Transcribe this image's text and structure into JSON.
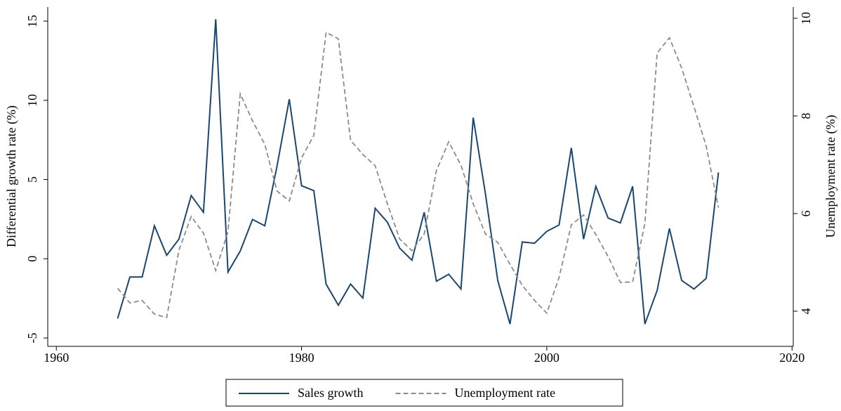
{
  "chart_data": {
    "type": "line",
    "y_label": "Differential growth rate (%)",
    "y2_label": "Unemployment rate (%)",
    "x": [
      1965,
      1966,
      1967,
      1968,
      1969,
      1970,
      1971,
      1972,
      1973,
      1974,
      1975,
      1976,
      1977,
      1978,
      1979,
      1980,
      1981,
      1982,
      1983,
      1984,
      1985,
      1986,
      1987,
      1988,
      1989,
      1990,
      1991,
      1992,
      1993,
      1994,
      1995,
      1996,
      1997,
      1998,
      1999,
      2000,
      2001,
      2002,
      2003,
      2004,
      2005,
      2006,
      2007,
      2008,
      2009,
      2010,
      2011,
      2012,
      2013,
      2014
    ],
    "series": [
      {
        "name": "Sales growth",
        "color": "#1a476f",
        "dash": false,
        "values": [
          -3.77,
          -1.15,
          -1.15,
          2.08,
          0.22,
          1.24,
          3.99,
          2.93,
          15.12,
          -0.84,
          0.49,
          2.48,
          2.08,
          5.85,
          10.07,
          4.61,
          4.3,
          -1.6,
          -2.93,
          -1.6,
          -2.48,
          3.19,
          2.31,
          0.67,
          -0.09,
          2.93,
          -1.42,
          -0.98,
          -1.91,
          8.91,
          4.08,
          -1.37,
          -4.12,
          1.06,
          0.98,
          1.73,
          2.13,
          7.0,
          1.24,
          4.57,
          2.57,
          2.26,
          4.57,
          -4.12,
          -2.0,
          1.91,
          -1.37,
          -1.91,
          -1.24,
          5.45
        ]
      },
      {
        "name": "Unemployment rate",
        "color": "#8c8c8c",
        "dash": true,
        "axis": "y2",
        "values": [
          4.47,
          4.17,
          4.22,
          3.94,
          3.87,
          5.25,
          5.94,
          5.6,
          4.83,
          5.63,
          8.45,
          7.9,
          7.42,
          6.46,
          6.26,
          7.14,
          7.6,
          9.71,
          9.58,
          7.5,
          7.21,
          6.98,
          6.2,
          5.48,
          5.24,
          5.58,
          6.88,
          7.47,
          6.99,
          6.2,
          5.58,
          5.41,
          4.96,
          4.53,
          4.22,
          3.96,
          4.69,
          5.77,
          5.97,
          5.57,
          5.12,
          4.59,
          4.6,
          5.8,
          9.29,
          9.6,
          8.98,
          8.19,
          7.38,
          6.12
        ]
      }
    ],
    "xlim": [
      1959.3,
      2020.1
    ],
    "xticks": [
      1960,
      1980,
      2000,
      2020
    ],
    "ylim": [
      -5.53,
      15.89
    ],
    "yticks": [
      -5,
      0,
      5,
      10,
      15
    ],
    "y2lim": [
      3.28,
      10.23
    ],
    "y2ticks": [
      4,
      6,
      8,
      10
    ],
    "grid": false,
    "legend": "bottom"
  }
}
